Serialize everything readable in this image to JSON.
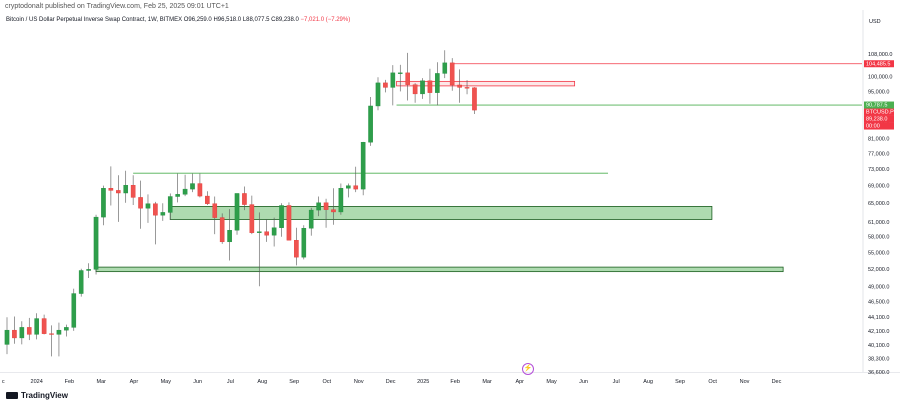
{
  "header": {
    "published": "cryptodonalt published on TradingView.com, Feb 25, 2025 09:01 UTC+1",
    "symbol_title": "Bitcoin / US Dollar Perpetual Inverse Swap Contract, 1W, BITMEX",
    "ohlc": "O96,259.0  H96,518.0  L88,077.5  C89,238.0",
    "change": "−7,021.0 (−7.29%)"
  },
  "price_axis": {
    "currency": "USD",
    "tags": [
      {
        "text": "104,485.5",
        "value": 104485.5,
        "color": "#f23645"
      },
      {
        "text": "90,787.5",
        "value": 90787.5,
        "color": "#4caf50"
      },
      {
        "text": "BTCUSD.P",
        "value": 89238.0,
        "color": "#f23645"
      },
      {
        "text": "89,238.0",
        "value": 89238.0,
        "color": "#f23645"
      },
      {
        "text": "00:00",
        "value": 87400,
        "color": "#f23645"
      }
    ]
  },
  "footer": {
    "brand": "TradingView",
    "bolt_icon": "lightning"
  },
  "chart_data": {
    "type": "candlestick",
    "timeframe": "1W",
    "y_scale": "log",
    "ylim": [
      36600,
      118000
    ],
    "y_ticks": [
      36600,
      38300,
      40100,
      42100,
      44100,
      46500,
      49000,
      52000,
      55000,
      58000,
      61000,
      65000,
      69000,
      73000,
      77000,
      81000,
      85000,
      90000,
      95000,
      100000,
      108000
    ],
    "y_tick_labels": [
      "36,600.0",
      "38,300.0",
      "40,100.0",
      "42,100.0",
      "44,100.0",
      "46,500.0",
      "49,000.0",
      "52,000.0",
      "55,000.0",
      "58,000.0",
      "61,000.0",
      "65,000.0",
      "69,000.0",
      "73,000.0",
      "77,000.0",
      "81,000.0",
      "85,000.0",
      "90,000.0",
      "95,000.0",
      "100,000.0",
      "108,000.0"
    ],
    "x_axis_labels": [
      {
        "label": "c",
        "week": -0.5
      },
      {
        "label": "2024",
        "week": 4
      },
      {
        "label": "Feb",
        "week": 8.4
      },
      {
        "label": "Mar",
        "week": 12.7
      },
      {
        "label": "Apr",
        "week": 17.1
      },
      {
        "label": "May",
        "week": 21.4
      },
      {
        "label": "Jun",
        "week": 25.7
      },
      {
        "label": "Jul",
        "week": 30.1
      },
      {
        "label": "Aug",
        "week": 34.4
      },
      {
        "label": "Sep",
        "week": 38.7
      },
      {
        "label": "Oct",
        "week": 43.1
      },
      {
        "label": "Nov",
        "week": 47.4
      },
      {
        "label": "Dec",
        "week": 51.7
      },
      {
        "label": "2025",
        "week": 56.1
      },
      {
        "label": "Feb",
        "week": 60.4
      },
      {
        "label": "Mar",
        "week": 64.7
      },
      {
        "label": "Apr",
        "week": 69.1
      },
      {
        "label": "May",
        "week": 73.4
      },
      {
        "label": "Jun",
        "week": 77.7
      },
      {
        "label": "Jul",
        "week": 82.1
      },
      {
        "label": "Aug",
        "week": 86.4
      },
      {
        "label": "Sep",
        "week": 90.7
      },
      {
        "label": "Oct",
        "week": 95.1
      },
      {
        "label": "Nov",
        "week": 99.4
      },
      {
        "label": "Dec",
        "week": 103.7
      }
    ],
    "candles": [
      [
        40200,
        44100,
        38900,
        42200
      ],
      [
        42200,
        44200,
        40300,
        41100
      ],
      [
        41100,
        43500,
        40200,
        42600
      ],
      [
        42600,
        44000,
        40800,
        41600
      ],
      [
        41600,
        44700,
        40900,
        43900
      ],
      [
        43900,
        44500,
        41600,
        41700
      ],
      [
        41700,
        42900,
        38600,
        41600
      ],
      [
        41600,
        43300,
        38600,
        42200
      ],
      [
        42200,
        43000,
        41300,
        42600
      ],
      [
        42600,
        48600,
        42100,
        47800
      ],
      [
        47800,
        52000,
        47300,
        51700
      ],
      [
        51700,
        53000,
        50400,
        51900
      ],
      [
        51900,
        62500,
        51000,
        62000
      ],
      [
        62000,
        69000,
        60300,
        68400
      ],
      [
        68400,
        73700,
        64500,
        67900
      ],
      [
        67900,
        71500,
        61000,
        67300
      ],
      [
        67300,
        72600,
        65100,
        69100
      ],
      [
        69100,
        71500,
        64600,
        66300
      ],
      [
        66300,
        70200,
        59600,
        63900
      ],
      [
        63900,
        67000,
        60800,
        64900
      ],
      [
        64900,
        65300,
        56500,
        62400
      ],
      [
        62400,
        65000,
        61200,
        63000
      ],
      [
        63000,
        67200,
        61400,
        66500
      ],
      [
        66500,
        71900,
        65200,
        67000
      ],
      [
        67000,
        71600,
        66600,
        68200
      ],
      [
        68200,
        71900,
        67500,
        69500
      ],
      [
        69500,
        71900,
        66300,
        66600
      ],
      [
        66600,
        67700,
        64600,
        64900
      ],
      [
        64900,
        66500,
        58500,
        61900
      ],
      [
        61900,
        62800,
        56600,
        57000
      ],
      [
        57000,
        63700,
        53500,
        59300
      ],
      [
        59300,
        67200,
        58400,
        67200
      ],
      [
        67200,
        68800,
        63500,
        64700
      ],
      [
        64700,
        66700,
        58500,
        58800
      ],
      [
        58800,
        63000,
        49000,
        59000
      ],
      [
        59000,
        61600,
        57000,
        58300
      ],
      [
        58300,
        61900,
        56100,
        59800
      ],
      [
        59800,
        65000,
        58000,
        64500
      ],
      [
        64500,
        65200,
        57500,
        57300
      ],
      [
        57300,
        59800,
        52600,
        54100
      ],
      [
        54100,
        60300,
        53700,
        59700
      ],
      [
        59700,
        64000,
        58200,
        63500
      ],
      [
        63500,
        66500,
        62200,
        65100
      ],
      [
        65100,
        66000,
        59800,
        63600
      ],
      [
        63600,
        68400,
        60400,
        63100
      ],
      [
        63100,
        69500,
        62500,
        68400
      ],
      [
        68400,
        69500,
        66300,
        69000
      ],
      [
        69000,
        73600,
        67500,
        68200
      ],
      [
        68200,
        80100,
        66800,
        80000
      ],
      [
        80000,
        93300,
        79000,
        90500
      ],
      [
        90500,
        99800,
        89200,
        97900
      ],
      [
        97900,
        98900,
        94800,
        96400
      ],
      [
        96400,
        104000,
        90700,
        101300
      ],
      [
        101300,
        104100,
        95100,
        101300
      ],
      [
        101300,
        108400,
        92200,
        97300
      ],
      [
        97300,
        97800,
        91500,
        94300
      ],
      [
        94300,
        99500,
        92700,
        98600
      ],
      [
        98600,
        102700,
        91200,
        94700
      ],
      [
        94700,
        105000,
        90700,
        101100
      ],
      [
        101100,
        109400,
        99500,
        104800
      ],
      [
        104800,
        106500,
        95300,
        97200
      ],
      [
        97200,
        102500,
        91500,
        96400
      ],
      [
        96400,
        98800,
        94200,
        96300
      ],
      [
        96300,
        96500,
        88077.5,
        89238
      ]
    ],
    "annotations": {
      "horizontal_lines": [
        {
          "price": 104485.5,
          "from_week": 60,
          "color": "#f23645"
        },
        {
          "price": 90787.5,
          "from_week": 52.5,
          "color": "#4caf50"
        },
        {
          "price": 72000,
          "from_week": 17,
          "to_week": 81,
          "color": "#4caf50"
        }
      ],
      "zones": [
        {
          "low": 61500,
          "high": 64300,
          "from_week": 22,
          "to_week": 95,
          "color": "#4caf50"
        },
        {
          "low": 51500,
          "high": 52300,
          "from_week": 12,
          "to_week": 104.6,
          "color": "#4caf50"
        },
        {
          "low": 96900,
          "high": 98400,
          "from_week": 52.5,
          "to_week": 76.5,
          "color": "#f23645"
        }
      ]
    }
  }
}
